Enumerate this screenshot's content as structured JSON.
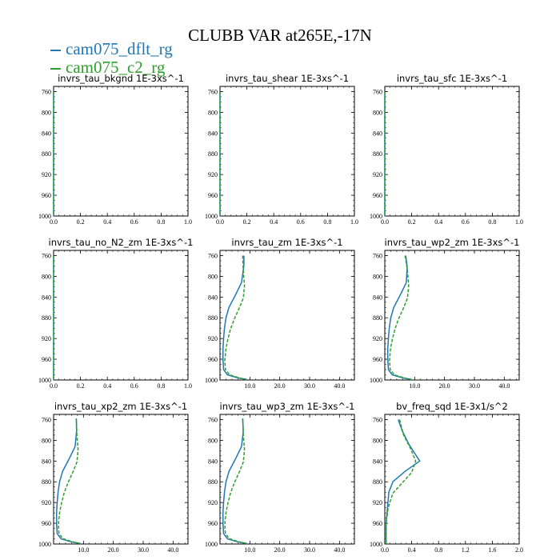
{
  "title": "CLUBB VAR at265E,-17N",
  "legend": [
    {
      "label": "cam075_dflt_rg",
      "color": "#1f77b4"
    },
    {
      "label": "cam075_c2_rg",
      "color": "#2ca02c"
    }
  ],
  "chart_data": [
    {
      "type": "line",
      "name": "invrs_tau_bkgnd",
      "units": "1E-3xs^-1",
      "xlim": [
        0,
        1
      ],
      "ylim": [
        1000,
        750
      ],
      "y_inverted": true,
      "xticks": [
        "0.0",
        "0.2",
        "0.4",
        "0.6",
        "0.8",
        "1.0"
      ],
      "yticks": [
        "760",
        "800",
        "840",
        "880",
        "920",
        "960",
        "1000"
      ],
      "series": [
        {
          "name": "cam075_dflt_rg",
          "points": [
            [
              0,
              760
            ],
            [
              0,
              1000
            ]
          ]
        },
        {
          "name": "cam075_c2_rg",
          "points": [
            [
              0,
              760
            ],
            [
              0,
              1000
            ]
          ]
        }
      ]
    },
    {
      "type": "line",
      "name": "invrs_tau_shear",
      "units": "1E-3xs^-1",
      "xlim": [
        0,
        1
      ],
      "ylim": [
        1000,
        750
      ],
      "y_inverted": true,
      "xticks": [
        "0.0",
        "0.2",
        "0.4",
        "0.6",
        "0.8",
        "1.0"
      ],
      "yticks": [
        "760",
        "800",
        "840",
        "880",
        "920",
        "960",
        "1000"
      ],
      "series": [
        {
          "name": "cam075_dflt_rg",
          "points": [
            [
              0,
              760
            ],
            [
              0,
              1000
            ]
          ]
        },
        {
          "name": "cam075_c2_rg",
          "points": [
            [
              0,
              760
            ],
            [
              0,
              1000
            ]
          ]
        }
      ]
    },
    {
      "type": "line",
      "name": "invrs_tau_sfc",
      "units": "1E-3xs^-1",
      "xlim": [
        0,
        1
      ],
      "ylim": [
        1000,
        750
      ],
      "y_inverted": true,
      "xticks": [
        "0.0",
        "0.2",
        "0.4",
        "0.6",
        "0.8",
        "1.0"
      ],
      "yticks": [
        "760",
        "800",
        "840",
        "880",
        "920",
        "960",
        "1000"
      ],
      "series": [
        {
          "name": "cam075_dflt_rg",
          "points": [
            [
              0,
              760
            ],
            [
              0,
              1000
            ]
          ]
        },
        {
          "name": "cam075_c2_rg",
          "points": [
            [
              0,
              760
            ],
            [
              0,
              1000
            ]
          ]
        }
      ]
    },
    {
      "type": "line",
      "name": "invrs_tau_no_N2_zm",
      "units": "1E-3xs^-1",
      "xlim": [
        0,
        1
      ],
      "ylim": [
        1000,
        750
      ],
      "y_inverted": true,
      "xticks": [
        "0.0",
        "0.2",
        "0.4",
        "0.6",
        "0.8",
        "1.0"
      ],
      "yticks": [
        "760",
        "800",
        "840",
        "880",
        "920",
        "960",
        "1000"
      ],
      "series": [
        {
          "name": "cam075_dflt_rg",
          "points": [
            [
              0,
              760
            ],
            [
              0,
              1000
            ]
          ]
        },
        {
          "name": "cam075_c2_rg",
          "points": [
            [
              0,
              760
            ],
            [
              0,
              1000
            ]
          ]
        }
      ]
    },
    {
      "type": "line",
      "name": "invrs_tau_zm",
      "units": "1E-3xs^-1",
      "xlim": [
        0,
        45
      ],
      "ylim": [
        1000,
        750
      ],
      "y_inverted": true,
      "xticks": [
        "10.0",
        "20.0",
        "30.0",
        "40.0"
      ],
      "yticks": [
        "760",
        "800",
        "840",
        "880",
        "920",
        "960",
        "1000"
      ],
      "series": [
        {
          "name": "cam075_dflt_rg",
          "points": [
            [
              8,
              760
            ],
            [
              8,
              780
            ],
            [
              7.2,
              812
            ],
            [
              5,
              838
            ],
            [
              3,
              860
            ],
            [
              2,
              880
            ],
            [
              1.5,
              900
            ],
            [
              1.2,
              920
            ],
            [
              1,
              940
            ],
            [
              1,
              960
            ],
            [
              1.2,
              980
            ],
            [
              2.5,
              990
            ],
            [
              6,
              996
            ],
            [
              9,
              999
            ]
          ]
        },
        {
          "name": "cam075_c2_rg",
          "points": [
            [
              7.6,
              760
            ],
            [
              7.8,
              790
            ],
            [
              8.2,
              818
            ],
            [
              7.8,
              842
            ],
            [
              6.4,
              862
            ],
            [
              4.8,
              882
            ],
            [
              3.5,
              902
            ],
            [
              2.6,
              922
            ],
            [
              2,
              940
            ],
            [
              1.6,
              962
            ],
            [
              1.8,
              980
            ],
            [
              3.2,
              990
            ],
            [
              6.5,
              996
            ],
            [
              9,
              999
            ]
          ]
        }
      ]
    },
    {
      "type": "line",
      "name": "invrs_tau_wp2_zm",
      "units": "1E-3xs^-1",
      "xlim": [
        0,
        45
      ],
      "ylim": [
        1000,
        750
      ],
      "y_inverted": true,
      "xticks": [
        "10.0",
        "20.0",
        "30.0",
        "40.0"
      ],
      "yticks": [
        "760",
        "800",
        "840",
        "880",
        "920",
        "960",
        "1000"
      ],
      "series": [
        {
          "name": "cam075_dflt_rg",
          "points": [
            [
              7,
              760
            ],
            [
              7.5,
              782
            ],
            [
              7.2,
              812
            ],
            [
              5,
              838
            ],
            [
              3,
              860
            ],
            [
              2,
              880
            ],
            [
              1.5,
              900
            ],
            [
              1.2,
              920
            ],
            [
              1,
              940
            ],
            [
              1,
              960
            ],
            [
              1.2,
              980
            ],
            [
              2.5,
              990
            ],
            [
              6,
              996
            ],
            [
              9,
              999
            ]
          ]
        },
        {
          "name": "cam075_c2_rg",
          "points": [
            [
              6.8,
              760
            ],
            [
              7.6,
              790
            ],
            [
              8,
              818
            ],
            [
              7.6,
              842
            ],
            [
              6.2,
              862
            ],
            [
              4.6,
              882
            ],
            [
              3.4,
              902
            ],
            [
              2.5,
              922
            ],
            [
              1.9,
              940
            ],
            [
              1.6,
              962
            ],
            [
              1.8,
              980
            ],
            [
              3.2,
              990
            ],
            [
              6.5,
              996
            ],
            [
              9,
              999
            ]
          ]
        }
      ]
    },
    {
      "type": "line",
      "name": "invrs_tau_xp2_zm",
      "units": "1E-3xs^-1",
      "xlim": [
        0,
        45
      ],
      "ylim": [
        1000,
        750
      ],
      "y_inverted": true,
      "xticks": [
        "10.0",
        "20.0",
        "30.0",
        "40.0"
      ],
      "yticks": [
        "760",
        "800",
        "840",
        "880",
        "920",
        "960",
        "1000"
      ],
      "series": [
        {
          "name": "cam075_dflt_rg",
          "points": [
            [
              7.6,
              758
            ],
            [
              7.7,
              782
            ],
            [
              7.2,
              812
            ],
            [
              5,
              838
            ],
            [
              3,
              860
            ],
            [
              2,
              880
            ],
            [
              1.5,
              900
            ],
            [
              1.2,
              920
            ],
            [
              1,
              940
            ],
            [
              1,
              960
            ],
            [
              1.2,
              980
            ],
            [
              2.5,
              990
            ],
            [
              6,
              996
            ],
            [
              9,
              999
            ]
          ]
        },
        {
          "name": "cam075_c2_rg",
          "points": [
            [
              7.6,
              758
            ],
            [
              7.8,
              790
            ],
            [
              8.2,
              818
            ],
            [
              7.8,
              842
            ],
            [
              6.4,
              862
            ],
            [
              4.8,
              882
            ],
            [
              3.5,
              902
            ],
            [
              2.6,
              922
            ],
            [
              2,
              940
            ],
            [
              1.6,
              962
            ],
            [
              1.8,
              980
            ],
            [
              3.2,
              990
            ],
            [
              6.5,
              996
            ],
            [
              9,
              999
            ]
          ]
        }
      ]
    },
    {
      "type": "line",
      "name": "invrs_tau_wp3_zm",
      "units": "1E-3xs^-1",
      "xlim": [
        0,
        45
      ],
      "ylim": [
        1000,
        750
      ],
      "y_inverted": true,
      "xticks": [
        "10.0",
        "20.0",
        "30.0",
        "40.0"
      ],
      "yticks": [
        "760",
        "800",
        "840",
        "880",
        "920",
        "960",
        "1000"
      ],
      "series": [
        {
          "name": "cam075_dflt_rg",
          "points": [
            [
              7.6,
              758
            ],
            [
              7.8,
              782
            ],
            [
              7.2,
              812
            ],
            [
              5,
              838
            ],
            [
              3,
              860
            ],
            [
              2,
              880
            ],
            [
              1.5,
              900
            ],
            [
              1.2,
              920
            ],
            [
              1,
              940
            ],
            [
              1,
              960
            ],
            [
              1.2,
              980
            ],
            [
              2.5,
              990
            ],
            [
              6,
              996
            ],
            [
              9,
              999
            ]
          ]
        },
        {
          "name": "cam075_c2_rg",
          "points": [
            [
              7.6,
              758
            ],
            [
              7.8,
              790
            ],
            [
              8.2,
              818
            ],
            [
              7.8,
              842
            ],
            [
              6.4,
              862
            ],
            [
              4.8,
              882
            ],
            [
              3.5,
              902
            ],
            [
              2.6,
              922
            ],
            [
              2,
              940
            ],
            [
              1.6,
              962
            ],
            [
              1.8,
              980
            ],
            [
              3.2,
              990
            ],
            [
              6.5,
              996
            ],
            [
              9,
              999
            ]
          ]
        }
      ]
    },
    {
      "type": "line",
      "name": "bv_freq_sqd",
      "units": "1E-3x1/s^2",
      "xlim": [
        0,
        2
      ],
      "ylim": [
        1000,
        750
      ],
      "y_inverted": true,
      "xticks": [
        "0.0",
        "0.4",
        "0.8",
        "1.2",
        "1.6",
        "2.0"
      ],
      "yticks": [
        "760",
        "800",
        "840",
        "880",
        "920",
        "960",
        "1000"
      ],
      "series": [
        {
          "name": "cam075_dflt_rg",
          "points": [
            [
              0.2,
              760
            ],
            [
              0.26,
              782
            ],
            [
              0.36,
              808
            ],
            [
              0.46,
              828
            ],
            [
              0.52,
              840
            ],
            [
              0.3,
              860
            ],
            [
              0.12,
              880
            ],
            [
              0.06,
              900
            ],
            [
              0.04,
              930
            ],
            [
              0.02,
              960
            ],
            [
              0.02,
              1000
            ]
          ]
        },
        {
          "name": "cam075_c2_rg",
          "points": [
            [
              0.22,
              760
            ],
            [
              0.28,
              790
            ],
            [
              0.38,
              815
            ],
            [
              0.46,
              840
            ],
            [
              0.4,
              862
            ],
            [
              0.26,
              882
            ],
            [
              0.12,
              902
            ],
            [
              0.05,
              930
            ],
            [
              0.02,
              960
            ],
            [
              0.02,
              1000
            ]
          ]
        }
      ]
    }
  ]
}
